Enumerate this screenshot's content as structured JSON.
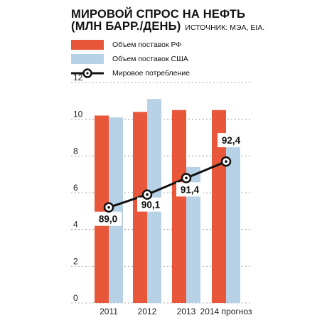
{
  "chart_data": {
    "type": "bar",
    "title_line1": "МИРОВОЙ СПРОС НА НЕФТЬ",
    "title_line2": "(МЛН БАРР./ДЕНЬ)",
    "source": "ИСТОЧНИК: МЭА, EIA.",
    "categories": [
      "2011",
      "2012",
      "2013",
      "2014 прогноз"
    ],
    "ylim": [
      0,
      12
    ],
    "yticks": [
      "0",
      "2",
      "4",
      "6",
      "8",
      "10",
      "12"
    ],
    "grid": true,
    "series": [
      {
        "name": "Объем поставок РФ",
        "color": "#e8573a",
        "values": [
          10.2,
          10.4,
          10.5,
          10.5
        ]
      },
      {
        "name": "Объем поставок США",
        "color": "#b7d1e6",
        "values": [
          10.1,
          11.1,
          7.4,
          8.5
        ]
      }
    ],
    "line": {
      "name": "Мировое потребление",
      "labels": [
        "89,0",
        "90,1",
        "91,4",
        "92,4"
      ],
      "values": [
        89.0,
        90.1,
        91.4,
        92.4
      ],
      "plot_level": [
        5.2,
        5.9,
        6.8,
        7.7
      ]
    }
  }
}
